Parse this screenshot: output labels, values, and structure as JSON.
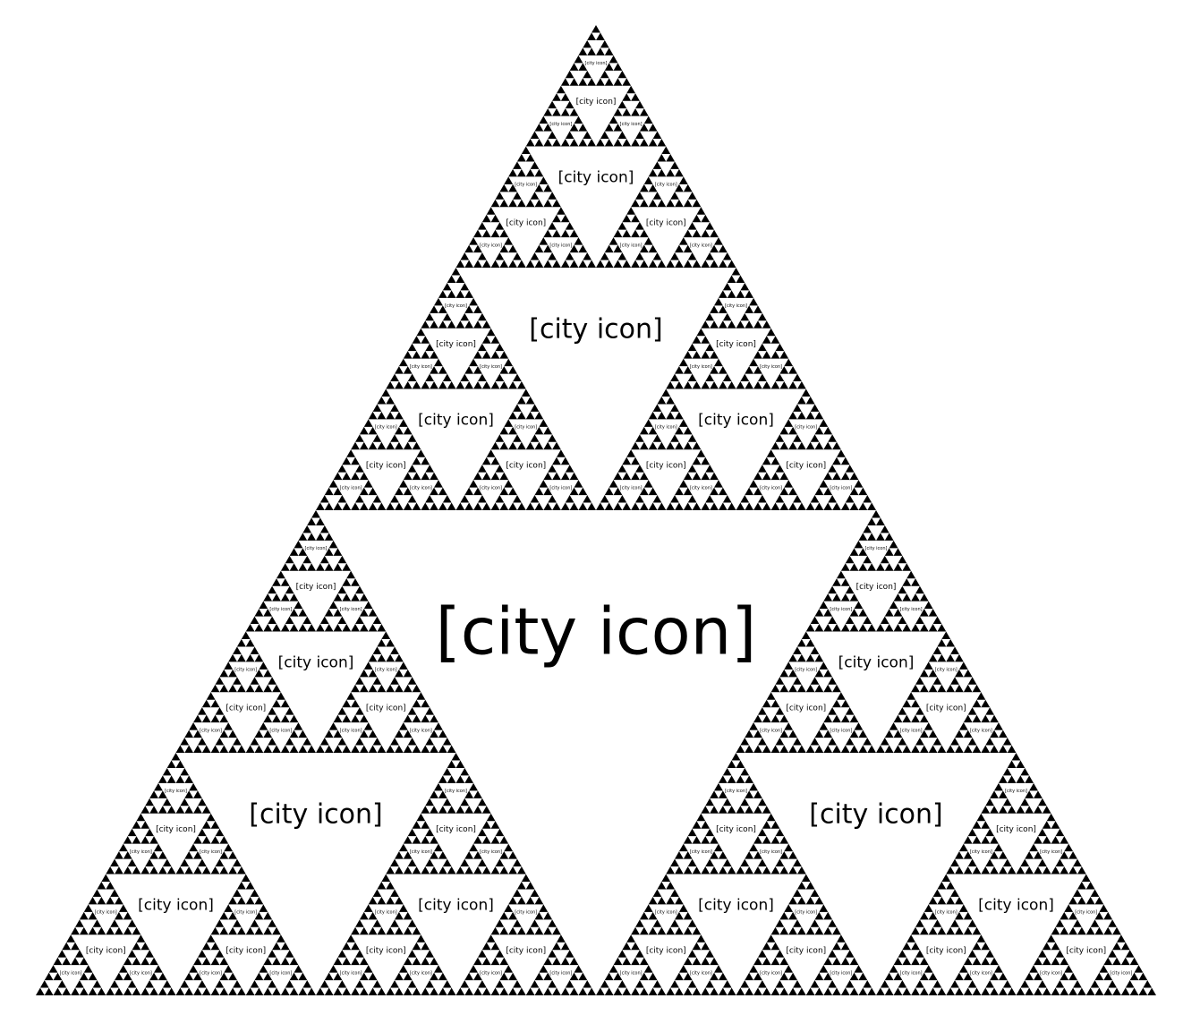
{
  "diagram": {
    "type": "sierpinski-triangle",
    "fill_color": "#000000",
    "hole_color": "#ffffff",
    "hole_label": "[city icon]",
    "hole_icon": "city-icon",
    "recursion_depth": 7
  }
}
